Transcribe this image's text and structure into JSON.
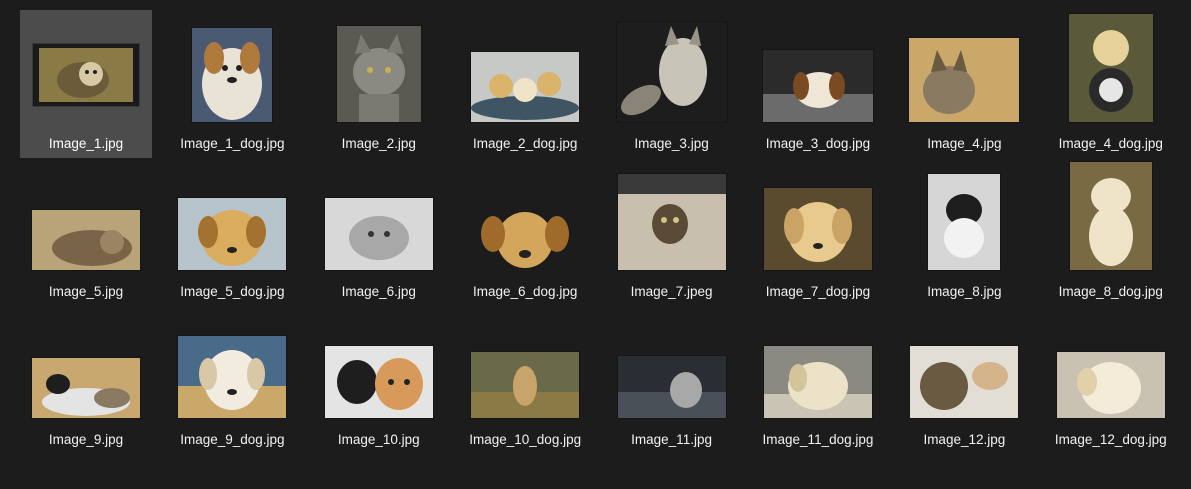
{
  "window": {
    "view": "large-icons"
  },
  "files": [
    {
      "name": "Image_1.jpg",
      "kind": "cat",
      "selected": true
    },
    {
      "name": "Image_1_dog.jpg",
      "kind": "dog"
    },
    {
      "name": "Image_2.jpg",
      "kind": "cat"
    },
    {
      "name": "Image_2_dog.jpg",
      "kind": "dog"
    },
    {
      "name": "Image_3.jpg",
      "kind": "cat"
    },
    {
      "name": "Image_3_dog.jpg",
      "kind": "dog"
    },
    {
      "name": "Image_4.jpg",
      "kind": "cat"
    },
    {
      "name": "Image_4_dog.jpg",
      "kind": "dog"
    },
    {
      "name": "Image_5.jpg",
      "kind": "cat"
    },
    {
      "name": "Image_5_dog.jpg",
      "kind": "dog"
    },
    {
      "name": "Image_6.jpg",
      "kind": "cat"
    },
    {
      "name": "Image_6_dog.jpg",
      "kind": "dog"
    },
    {
      "name": "Image_7.jpeg",
      "kind": "cat"
    },
    {
      "name": "Image_7_dog.jpg",
      "kind": "dog"
    },
    {
      "name": "Image_8.jpg",
      "kind": "cat"
    },
    {
      "name": "Image_8_dog.jpg",
      "kind": "dog"
    },
    {
      "name": "Image_9.jpg",
      "kind": "cat"
    },
    {
      "name": "Image_9_dog.jpg",
      "kind": "dog"
    },
    {
      "name": "Image_10.jpg",
      "kind": "cat"
    },
    {
      "name": "Image_10_dog.jpg",
      "kind": "dog"
    },
    {
      "name": "Image_11.jpg",
      "kind": "cat"
    },
    {
      "name": "Image_11_dog.jpg",
      "kind": "dog"
    },
    {
      "name": "Image_12.jpg",
      "kind": "cat"
    },
    {
      "name": "Image_12_dog.jpg",
      "kind": "dog"
    }
  ],
  "colors": {
    "background": "#1c1c1c",
    "selection": "#4c4c4c",
    "text": "#f2f2f2"
  }
}
